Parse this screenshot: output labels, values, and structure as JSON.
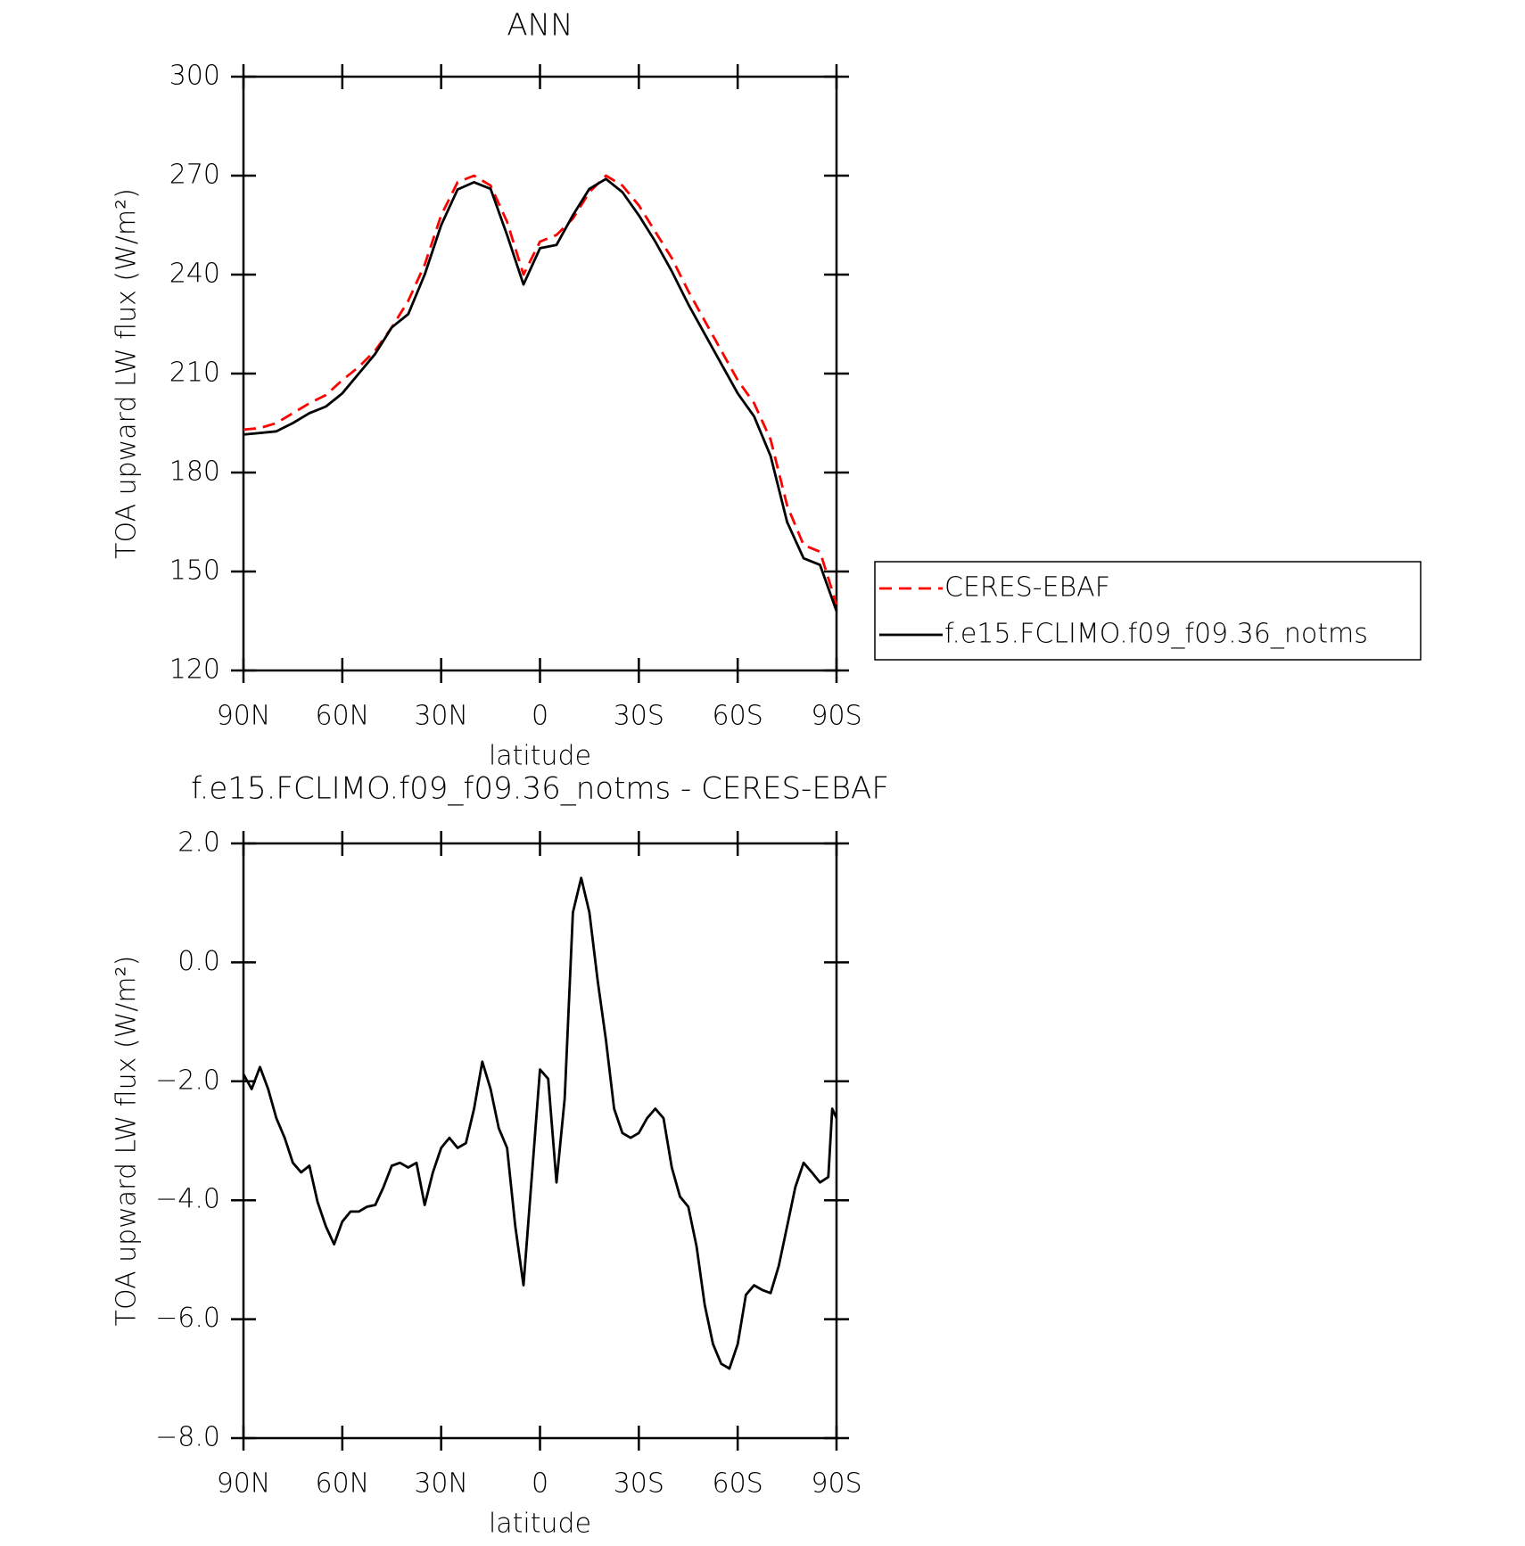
{
  "chart_data": [
    {
      "type": "line",
      "title": "ANN",
      "xlabel": "latitude",
      "ylabel": "TOA upward LW flux (W/m²)",
      "x": [
        90,
        85,
        80,
        75,
        70,
        65,
        60,
        55,
        50,
        45,
        40,
        35,
        30,
        25,
        20,
        15,
        10,
        5,
        0,
        -5,
        -10,
        -15,
        -20,
        -25,
        -30,
        -35,
        -40,
        -45,
        -50,
        -55,
        -60,
        -65,
        -70,
        -75,
        -80,
        -85,
        -90
      ],
      "xlim": [
        90,
        -90
      ],
      "xticks": [
        {
          "value": 90,
          "label": "90N"
        },
        {
          "value": 60,
          "label": "60N"
        },
        {
          "value": 30,
          "label": "30N"
        },
        0,
        {
          "value": -30,
          "label": "30S"
        },
        {
          "value": -60,
          "label": "60S"
        },
        {
          "value": -90,
          "label": "90S"
        }
      ],
      "ylim": [
        120,
        300
      ],
      "yticks": [
        120,
        150,
        180,
        210,
        240,
        270,
        300
      ],
      "legend": "outside right",
      "series": [
        {
          "name": "CERES-EBAF",
          "color": "#ff0000",
          "dashed": true,
          "values": [
            193,
            193.5,
            195,
            198,
            201,
            203.5,
            208,
            212,
            217,
            224,
            232,
            243,
            258,
            268,
            270,
            267,
            256,
            240,
            250,
            252,
            257,
            265,
            270,
            267,
            261,
            253,
            245,
            235,
            226,
            217,
            208,
            201,
            190,
            170,
            158,
            156,
            140
          ]
        },
        {
          "name": "f.e15.FCLIMO.f09_f09.36_notms",
          "color": "#000000",
          "dashed": false,
          "values": [
            191.5,
            192,
            192.5,
            195,
            198,
            200,
            204,
            210,
            216,
            224,
            228,
            240,
            255,
            265.8,
            268,
            266,
            252,
            237,
            248,
            249,
            258,
            266,
            269,
            265,
            258,
            250,
            241,
            231,
            222,
            213,
            204,
            197,
            185,
            165,
            154,
            152,
            138
          ]
        }
      ]
    },
    {
      "type": "line",
      "title": "f.e15.FCLIMO.f09_f09.36_notms - CERES-EBAF",
      "xlabel": "latitude",
      "ylabel": "TOA upward LW flux (W/m²)",
      "x": [
        90,
        87.5,
        85,
        82.5,
        80,
        77.5,
        75,
        72.5,
        70,
        67.5,
        65,
        62.5,
        60,
        57.5,
        55,
        52.5,
        50,
        47.5,
        45,
        42.5,
        40,
        37.5,
        35,
        32.5,
        30,
        27.5,
        25,
        22.5,
        20,
        17.5,
        15,
        12.5,
        10,
        7.5,
        5,
        2.5,
        0,
        -2.5,
        -5,
        -7.5,
        -10,
        -12.5,
        -15,
        -17.5,
        -20,
        -22.5,
        -25,
        -27.5,
        -30,
        -32.5,
        -35,
        -37.5,
        -40,
        -42.5,
        -45,
        -47.5,
        -50,
        -52.5,
        -55,
        -57.5,
        -60,
        -62.5,
        -65,
        -67.5,
        -70,
        -72.5,
        -75,
        -77.5,
        -80,
        -82.5,
        -85,
        -87.5,
        -88.7,
        -90
      ],
      "xlim": [
        90,
        -90
      ],
      "xticks": [
        {
          "value": 90,
          "label": "90N"
        },
        {
          "value": 60,
          "label": "60N"
        },
        {
          "value": 30,
          "label": "30N"
        },
        0,
        {
          "value": -30,
          "label": "30S"
        },
        {
          "value": -60,
          "label": "60S"
        },
        {
          "value": -90,
          "label": "90S"
        }
      ],
      "ylim": [
        -8,
        2
      ],
      "yticks": [
        {
          "value": -8,
          "label": "−8.0"
        },
        {
          "value": -6,
          "label": "−6.0"
        },
        {
          "value": -4,
          "label": "−4.0"
        },
        {
          "value": -2,
          "label": "−2.0"
        },
        {
          "value": 0,
          "label": "0.0"
        },
        {
          "value": 2,
          "label": "2.0"
        }
      ],
      "series": [
        {
          "color": "#000000",
          "values": [
            -1.88,
            -2.13,
            -1.76,
            -2.13,
            -2.62,
            -2.95,
            -3.37,
            -3.53,
            -3.42,
            -4.03,
            -4.44,
            -4.74,
            -4.36,
            -4.19,
            -4.19,
            -4.11,
            -4.08,
            -3.78,
            -3.42,
            -3.37,
            -3.45,
            -3.37,
            -4.08,
            -3.53,
            -3.12,
            -2.95,
            -3.12,
            -3.04,
            -2.46,
            -1.67,
            -2.13,
            -2.79,
            -3.12,
            -4.44,
            -5.43,
            -3.61,
            -1.8,
            -1.96,
            -3.7,
            -2.29,
            0.84,
            1.42,
            0.84,
            -0.31,
            -1.3,
            -2.46,
            -2.87,
            -2.95,
            -2.87,
            -2.62,
            -2.46,
            -2.62,
            -3.45,
            -3.94,
            -4.11,
            -4.77,
            -5.76,
            -6.42,
            -6.75,
            -6.83,
            -6.42,
            -5.59,
            -5.43,
            -5.51,
            -5.56,
            -5.1,
            -4.44,
            -3.78,
            -3.37,
            -3.53,
            -3.7,
            -3.61,
            -2.46,
            -2.62
          ]
        }
      ]
    }
  ]
}
